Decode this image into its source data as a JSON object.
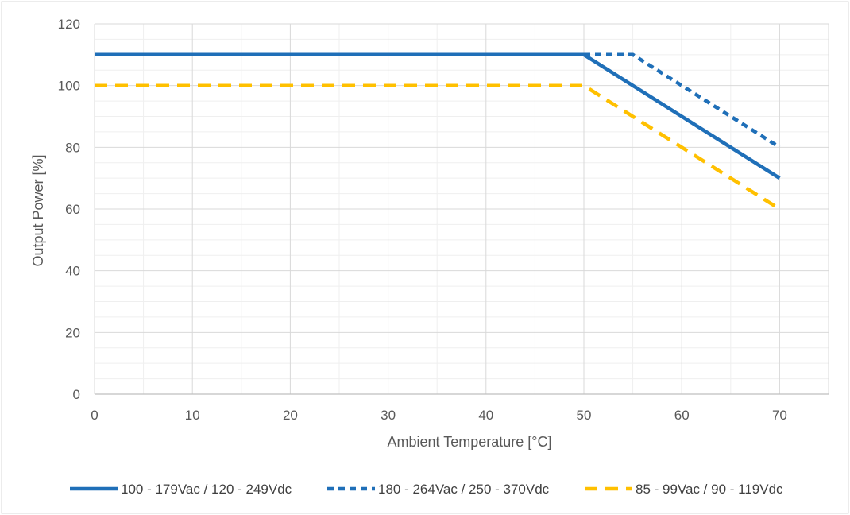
{
  "chart_data": {
    "type": "line",
    "title": "",
    "xlabel": "Ambient Temperature [°C]",
    "ylabel": "Output Power [%]",
    "xlim": [
      0,
      75
    ],
    "ylim": [
      0,
      120
    ],
    "x_ticks": [
      0,
      10,
      20,
      30,
      40,
      50,
      60,
      70
    ],
    "y_ticks": [
      0,
      20,
      40,
      60,
      80,
      100,
      120
    ],
    "grid": {
      "major": true,
      "minor": true
    },
    "legend_position": "bottom",
    "series": [
      {
        "name": "100 - 179Vac / 120 - 249Vdc",
        "color": "#1F6FB8",
        "style": "solid",
        "points": [
          [
            0,
            110
          ],
          [
            50,
            110
          ],
          [
            70,
            70
          ]
        ]
      },
      {
        "name": "180 - 264Vac / 250 - 370Vdc",
        "color": "#1F6FB8",
        "style": "short-dash",
        "points": [
          [
            0,
            110
          ],
          [
            55,
            110
          ],
          [
            70,
            80
          ]
        ]
      },
      {
        "name": "85 - 99Vac / 90 - 119Vdc",
        "color": "#FFC000",
        "style": "long-dash",
        "points": [
          [
            0,
            100
          ],
          [
            50,
            100
          ],
          [
            70,
            60
          ]
        ]
      }
    ]
  }
}
